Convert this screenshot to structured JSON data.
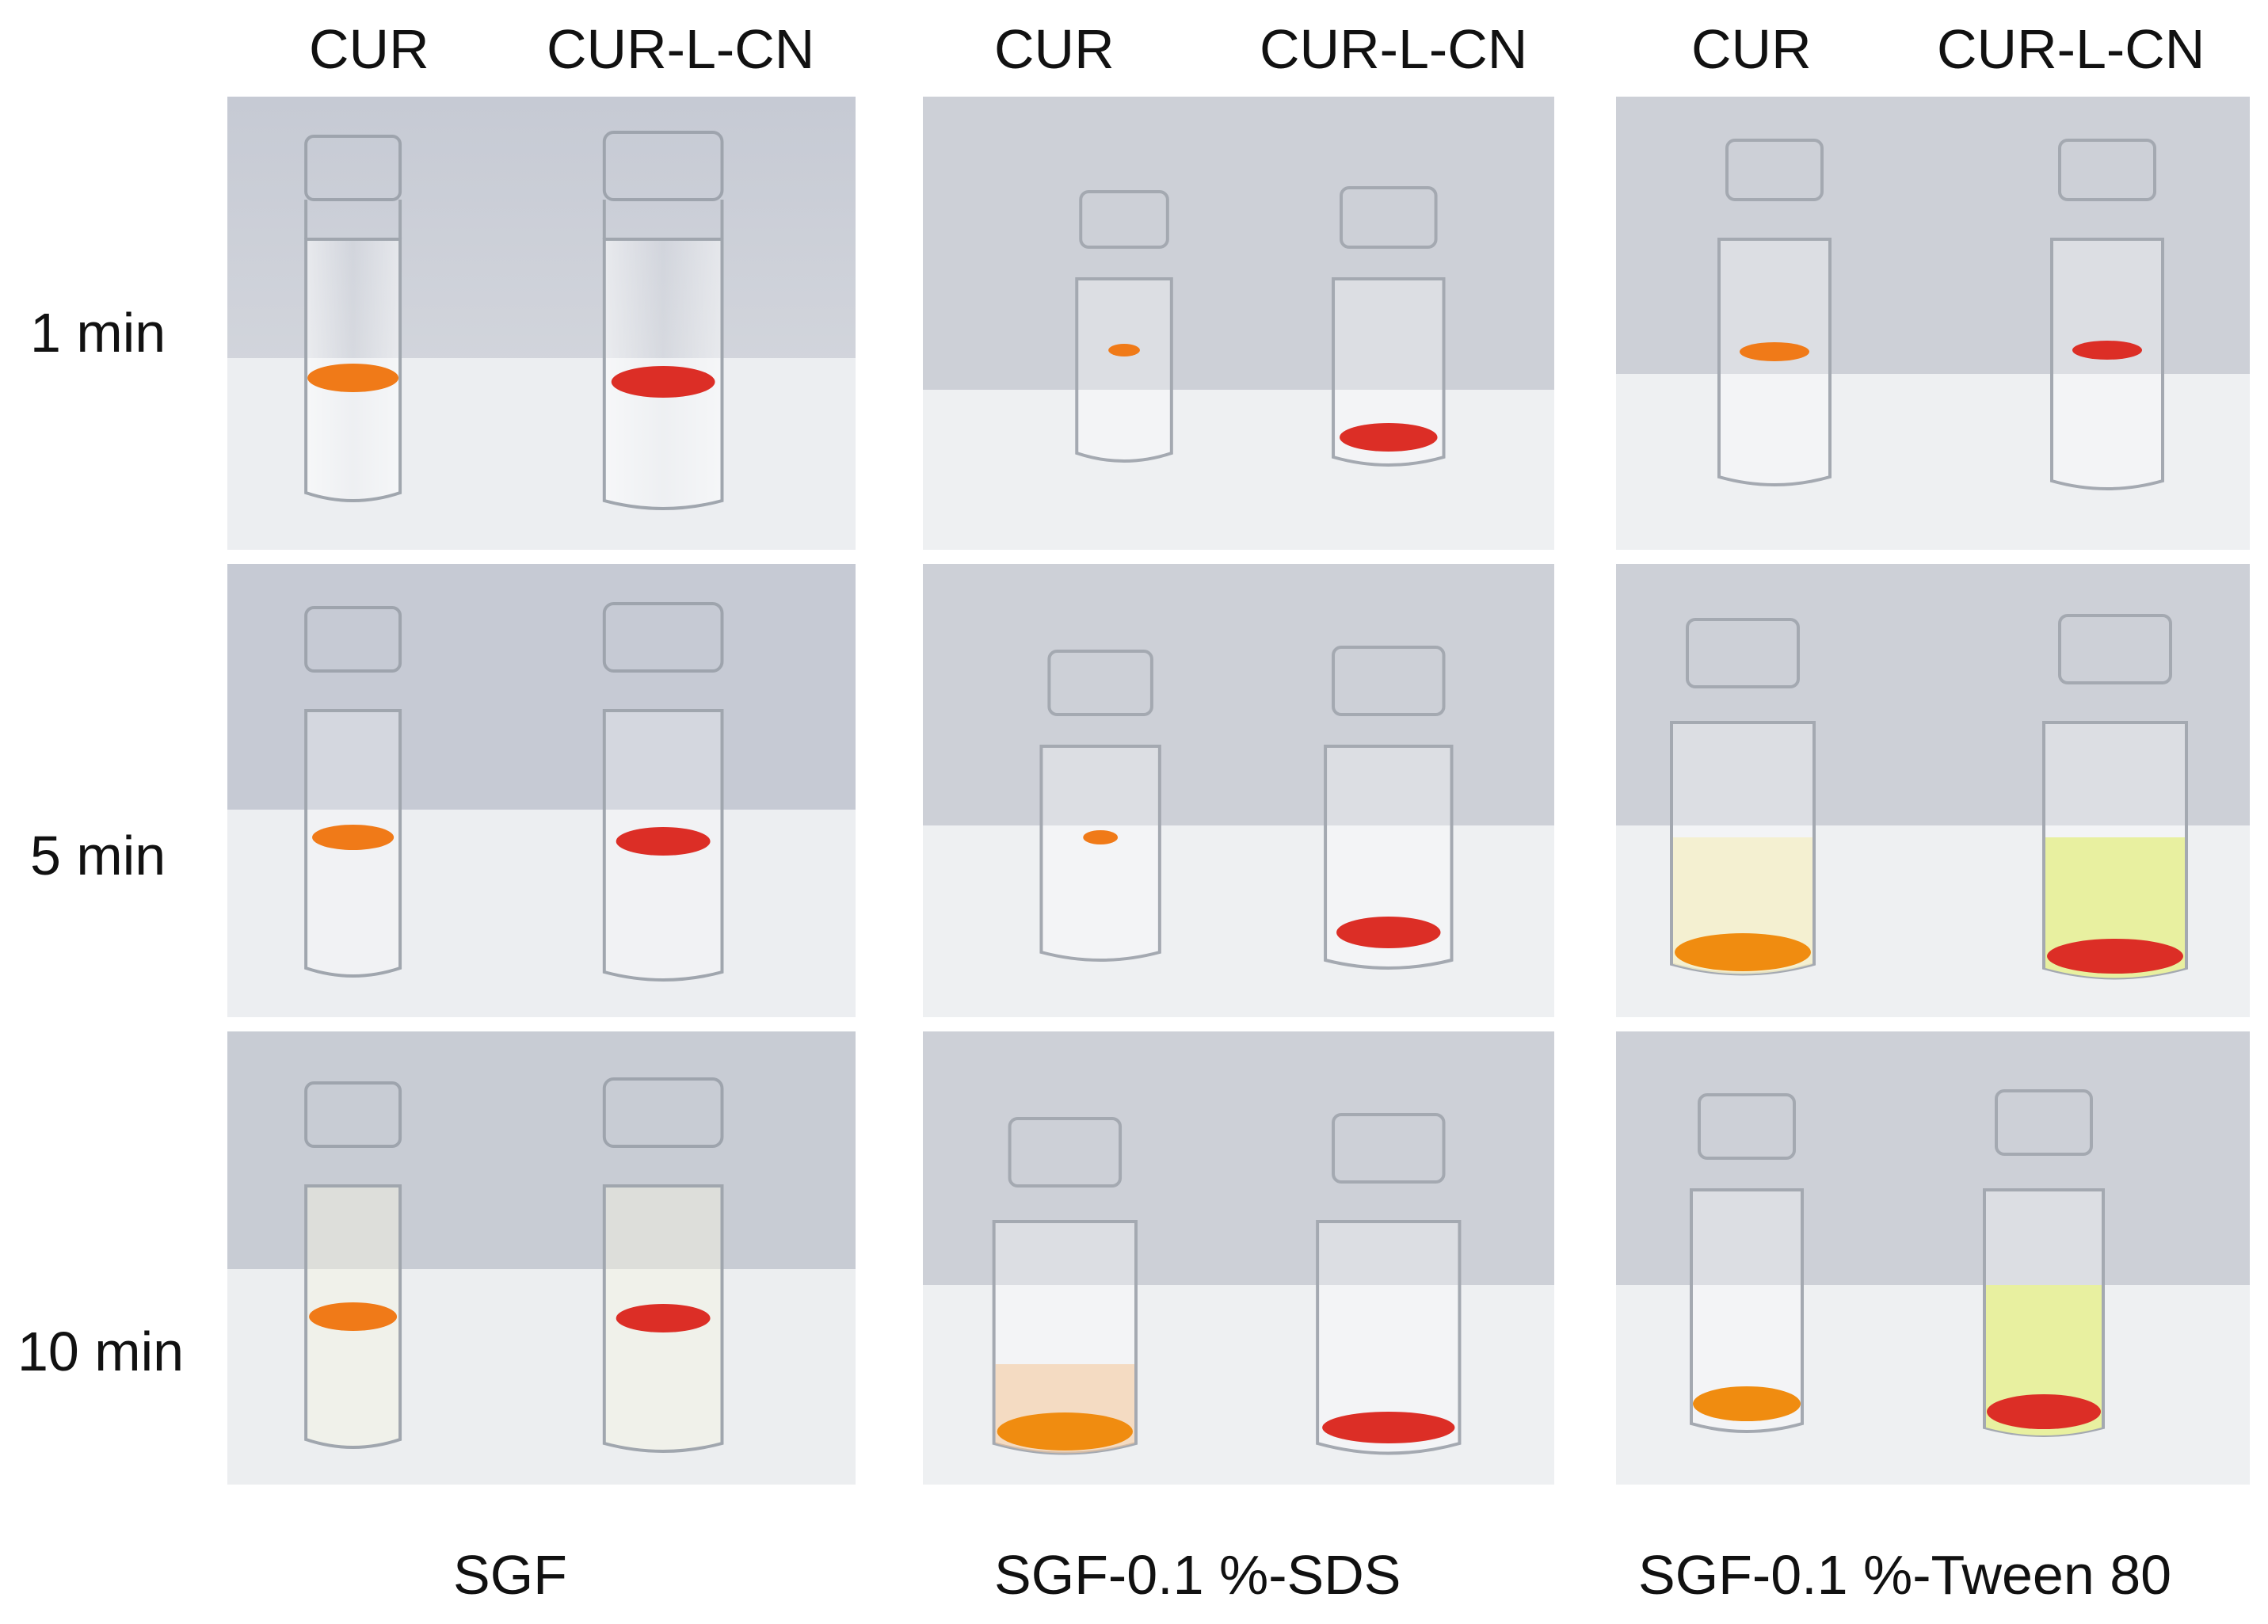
{
  "columns": {
    "g1": {
      "cur": "CUR",
      "cn": "CUR-L-CN"
    },
    "g2": {
      "cur": "CUR",
      "cn": "CUR-L-CN"
    },
    "g3": {
      "cur": "CUR",
      "cn": "CUR-L-CN"
    }
  },
  "rows": {
    "r1": "1 min",
    "r2": "5 min",
    "r3": "10 min"
  },
  "groups": {
    "g1": "SGF",
    "g2": "SGF-0.1 %-SDS",
    "g3": "SGF-0.1 %-Tween 80"
  },
  "colors": {
    "background_wall": "#c8ccd6",
    "table_surface": "#eaecef",
    "curcumin_orange": "#f07a18",
    "cur_l_cn_red": "#dc2e26",
    "tween_yellow": "#e8f0a0",
    "dissolved_orange": "#f08c10"
  }
}
